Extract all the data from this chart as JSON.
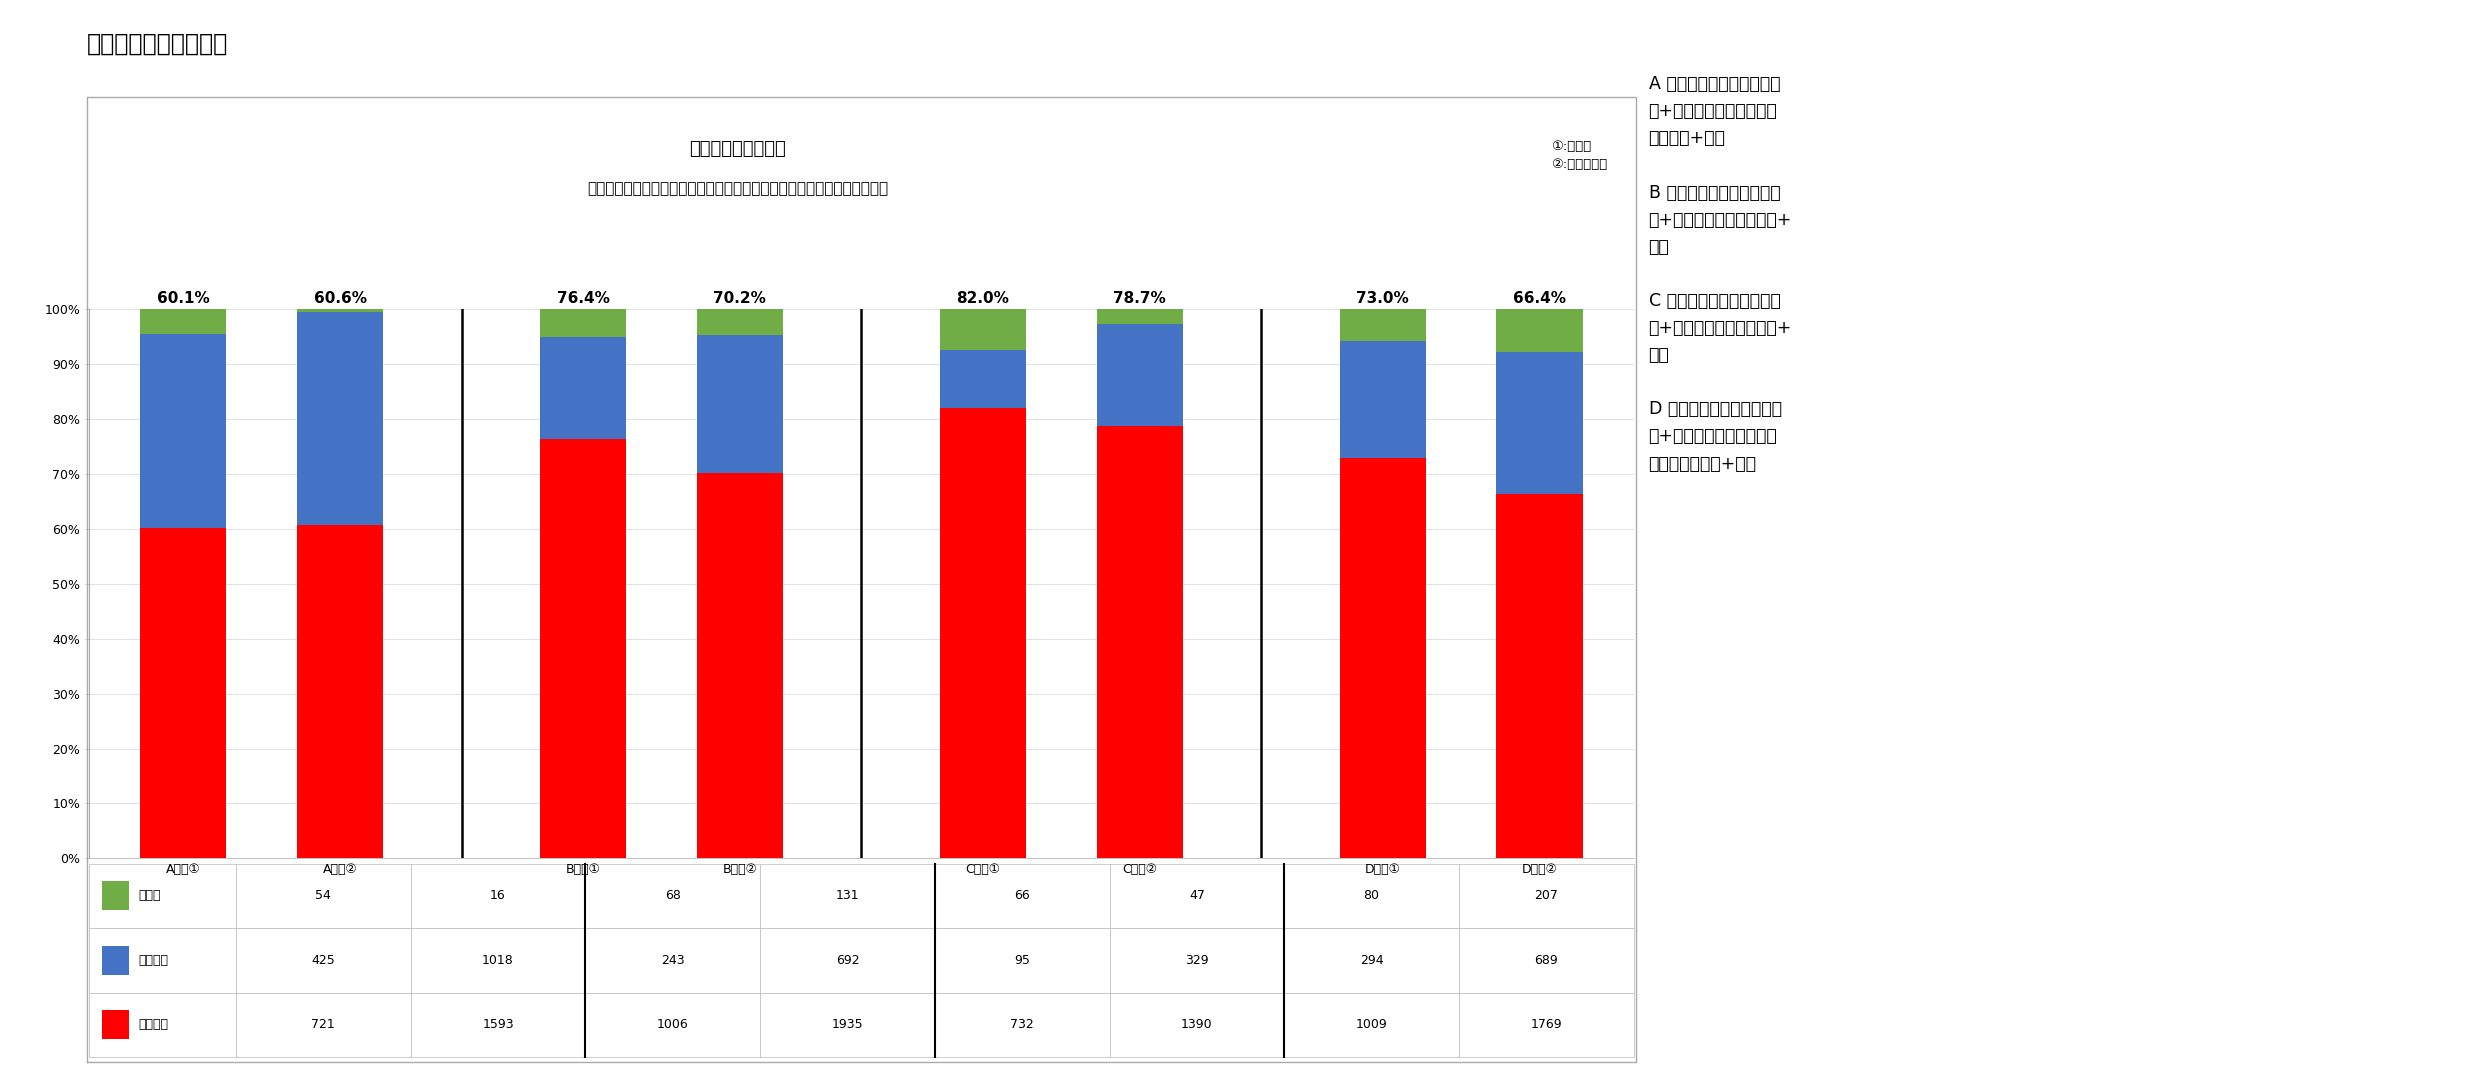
{
  "title": "授業形式満足度グラフ",
  "subtitle_line1": "各授業形式の満足度",
  "subtitle_line2": "（「〇方式についてどう思いましたか」に「良かった」と回答した人数）",
  "note_line1": "①:１年生",
  "note_line2": "②:２年生以上",
  "categories": [
    "A方式①",
    "A方式②",
    "B方式①",
    "B方式②",
    "C方式①",
    "C方式②",
    "D方式①",
    "D方式②"
  ],
  "percentages": [
    "60.1%",
    "60.6%",
    "76.4%",
    "70.2%",
    "82.0%",
    "78.7%",
    "73.0%",
    "66.4%"
  ],
  "good": [
    721,
    1593,
    1006,
    1935,
    732,
    1390,
    1009,
    1769
  ],
  "bad": [
    425,
    1018,
    243,
    692,
    95,
    329,
    294,
    689
  ],
  "no_answer": [
    54,
    16,
    68,
    131,
    66,
    47,
    80,
    207
  ],
  "color_good": "#FF0000",
  "color_bad": "#4472C4",
  "color_no_answer": "#70AD47",
  "legend_labels": [
    "未回答",
    "悪かった",
    "良かった"
  ],
  "right_text_lines": [
    "A 方式：教科書または資料",
    "等+文字解説資料（オンデ",
    "マンド）+課題",
    "",
    "B 方式：教科書または資料",
    "等+音声（オンデマンド）+",
    "課題",
    "",
    "C 方式：教科書または資料",
    "等+動画（オンデマンド）+",
    "課題",
    "",
    "D 方式：教科書または資料",
    "等+リアルタイム配信（音",
    "声または動画）+課題"
  ],
  "ytick_labels": [
    "0%",
    "10%",
    "20%",
    "30%",
    "40%",
    "50%",
    "60%",
    "70%",
    "80%",
    "90%",
    "100%"
  ]
}
